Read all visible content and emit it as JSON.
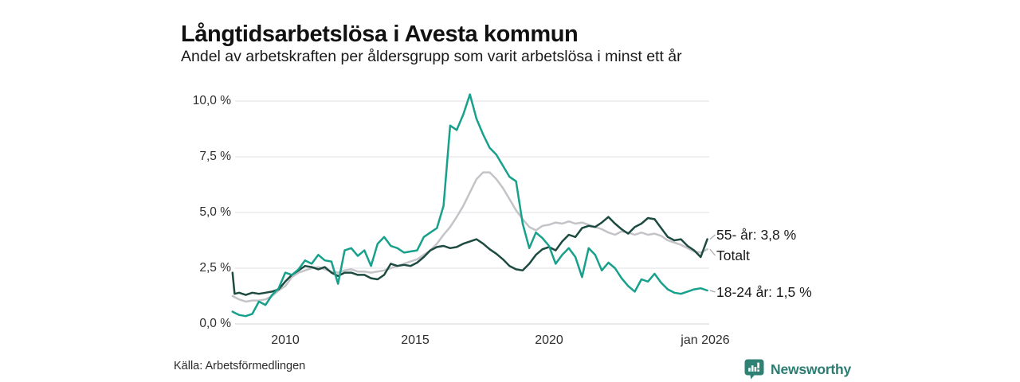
{
  "header": {
    "title": "Långtidsarbetslösa i Avesta kommun",
    "subtitle": "Andel av arbetskraften per åldersgrupp som varit arbetslösa i minst ett år"
  },
  "footer": {
    "source": "Källa: Arbetsförmedlingen",
    "brand": "Newsworthy"
  },
  "colors": {
    "grid": "#e7e7ea",
    "axis": "#dcdcdf",
    "leader": "#a9a9ad",
    "brand_teal": "#2f8174"
  },
  "chart_data": {
    "type": "line",
    "title": "Långtidsarbetslösa i Avesta kommun",
    "subtitle": "Andel av arbetskraften per åldersgrupp som varit arbetslösa i minst ett år",
    "unit": "%",
    "x_range": [
      2008,
      2026.1
    ],
    "ylim": [
      0,
      10.4
    ],
    "grid": "horizontal",
    "legend_position": "right-end-labels",
    "y_ticks": [
      "10,0 %",
      "7,5 %",
      "5,0 %",
      "2,5 %",
      "0,0 %"
    ],
    "y_gridline_values": [
      10.0,
      7.5,
      5.0,
      2.5,
      0.0
    ],
    "x_ticks": [
      {
        "label": "2010",
        "year": 2010
      },
      {
        "label": "2015",
        "year": 2015
      },
      {
        "label": "2020",
        "year": 2020
      },
      {
        "label": "jan 2026",
        "year": 2025.92
      }
    ],
    "x": [
      2008,
      2008.08,
      2008.25,
      2008.5,
      2008.75,
      2009,
      2009.25,
      2009.5,
      2009.75,
      2010,
      2010.25,
      2010.5,
      2010.75,
      2011,
      2011.25,
      2011.5,
      2011.75,
      2012,
      2012.25,
      2012.5,
      2012.75,
      2013,
      2013.25,
      2013.5,
      2013.75,
      2014,
      2014.25,
      2014.5,
      2014.75,
      2015,
      2015.25,
      2015.5,
      2015.75,
      2016,
      2016.25,
      2016.5,
      2016.75,
      2017,
      2017.25,
      2017.5,
      2017.75,
      2018,
      2018.25,
      2018.5,
      2018.75,
      2019,
      2019.25,
      2019.5,
      2019.75,
      2020,
      2020.25,
      2020.5,
      2020.75,
      2021,
      2021.25,
      2021.5,
      2021.75,
      2022,
      2022.25,
      2022.5,
      2022.75,
      2023,
      2023.25,
      2023.5,
      2023.75,
      2024,
      2024.25,
      2024.5,
      2024.75,
      2025,
      2025.25,
      2025.5,
      2025.75,
      2026
    ],
    "series": [
      {
        "name": "Totalt",
        "end_label": "Totalt",
        "end_value_text": "",
        "color": "#c3c3c8",
        "values": [
          1.25,
          1.2,
          1.1,
          1.0,
          1.05,
          1.05,
          1.1,
          1.25,
          1.5,
          1.7,
          2.1,
          2.3,
          2.4,
          2.5,
          2.55,
          2.45,
          2.35,
          2.3,
          2.4,
          2.45,
          2.35,
          2.35,
          2.3,
          2.35,
          2.4,
          2.5,
          2.6,
          2.7,
          2.8,
          2.9,
          3.1,
          3.3,
          3.6,
          4.0,
          4.35,
          4.8,
          5.3,
          5.9,
          6.5,
          6.8,
          6.8,
          6.5,
          6.1,
          5.6,
          5.1,
          4.7,
          4.35,
          4.2,
          4.4,
          4.45,
          4.55,
          4.5,
          4.6,
          4.5,
          4.55,
          4.45,
          4.35,
          4.25,
          4.1,
          4.0,
          4.15,
          4.1,
          4.0,
          4.1,
          4.0,
          4.05,
          3.95,
          3.75,
          3.65,
          3.55,
          3.4,
          3.25,
          3.2,
          3.35
        ]
      },
      {
        "name": "55- år",
        "end_label": "55- år: 3,8 %",
        "end_value_text": "3,8 %",
        "color": "#1d4b41",
        "values": [
          2.3,
          1.35,
          1.4,
          1.3,
          1.4,
          1.35,
          1.4,
          1.45,
          1.55,
          1.9,
          2.2,
          2.4,
          2.6,
          2.55,
          2.45,
          2.55,
          2.3,
          2.15,
          2.3,
          2.3,
          2.2,
          2.2,
          2.05,
          2.0,
          2.2,
          2.7,
          2.6,
          2.65,
          2.6,
          2.75,
          3.0,
          3.3,
          3.45,
          3.5,
          3.4,
          3.45,
          3.6,
          3.7,
          3.8,
          3.6,
          3.35,
          3.15,
          2.9,
          2.6,
          2.45,
          2.4,
          2.7,
          3.1,
          3.35,
          3.45,
          3.3,
          3.7,
          4.0,
          3.9,
          4.3,
          4.4,
          4.35,
          4.55,
          4.8,
          4.5,
          4.25,
          4.05,
          4.35,
          4.5,
          4.75,
          4.7,
          4.3,
          3.9,
          3.75,
          3.8,
          3.5,
          3.3,
          3.0,
          3.8
        ]
      },
      {
        "name": "18-24 år",
        "end_label": "18-24 år: 1,5 %",
        "end_value_text": "1,5 %",
        "color": "#17a08b",
        "values": [
          0.55,
          0.5,
          0.4,
          0.35,
          0.45,
          1.0,
          0.85,
          1.3,
          1.6,
          2.3,
          2.2,
          2.45,
          2.85,
          2.7,
          3.1,
          2.85,
          2.8,
          1.8,
          3.3,
          3.4,
          3.05,
          3.3,
          2.6,
          3.6,
          3.9,
          3.5,
          3.4,
          3.2,
          3.25,
          3.3,
          3.9,
          4.1,
          4.3,
          5.3,
          8.9,
          8.7,
          9.4,
          10.3,
          9.2,
          8.5,
          7.9,
          7.6,
          7.1,
          6.6,
          6.4,
          4.5,
          3.4,
          4.1,
          3.85,
          3.5,
          2.7,
          3.1,
          3.4,
          3.0,
          2.1,
          3.4,
          3.1,
          2.4,
          2.75,
          2.5,
          2.05,
          1.7,
          1.45,
          2.0,
          1.9,
          2.25,
          1.85,
          1.55,
          1.4,
          1.35,
          1.45,
          1.55,
          1.6,
          1.5
        ]
      }
    ]
  }
}
